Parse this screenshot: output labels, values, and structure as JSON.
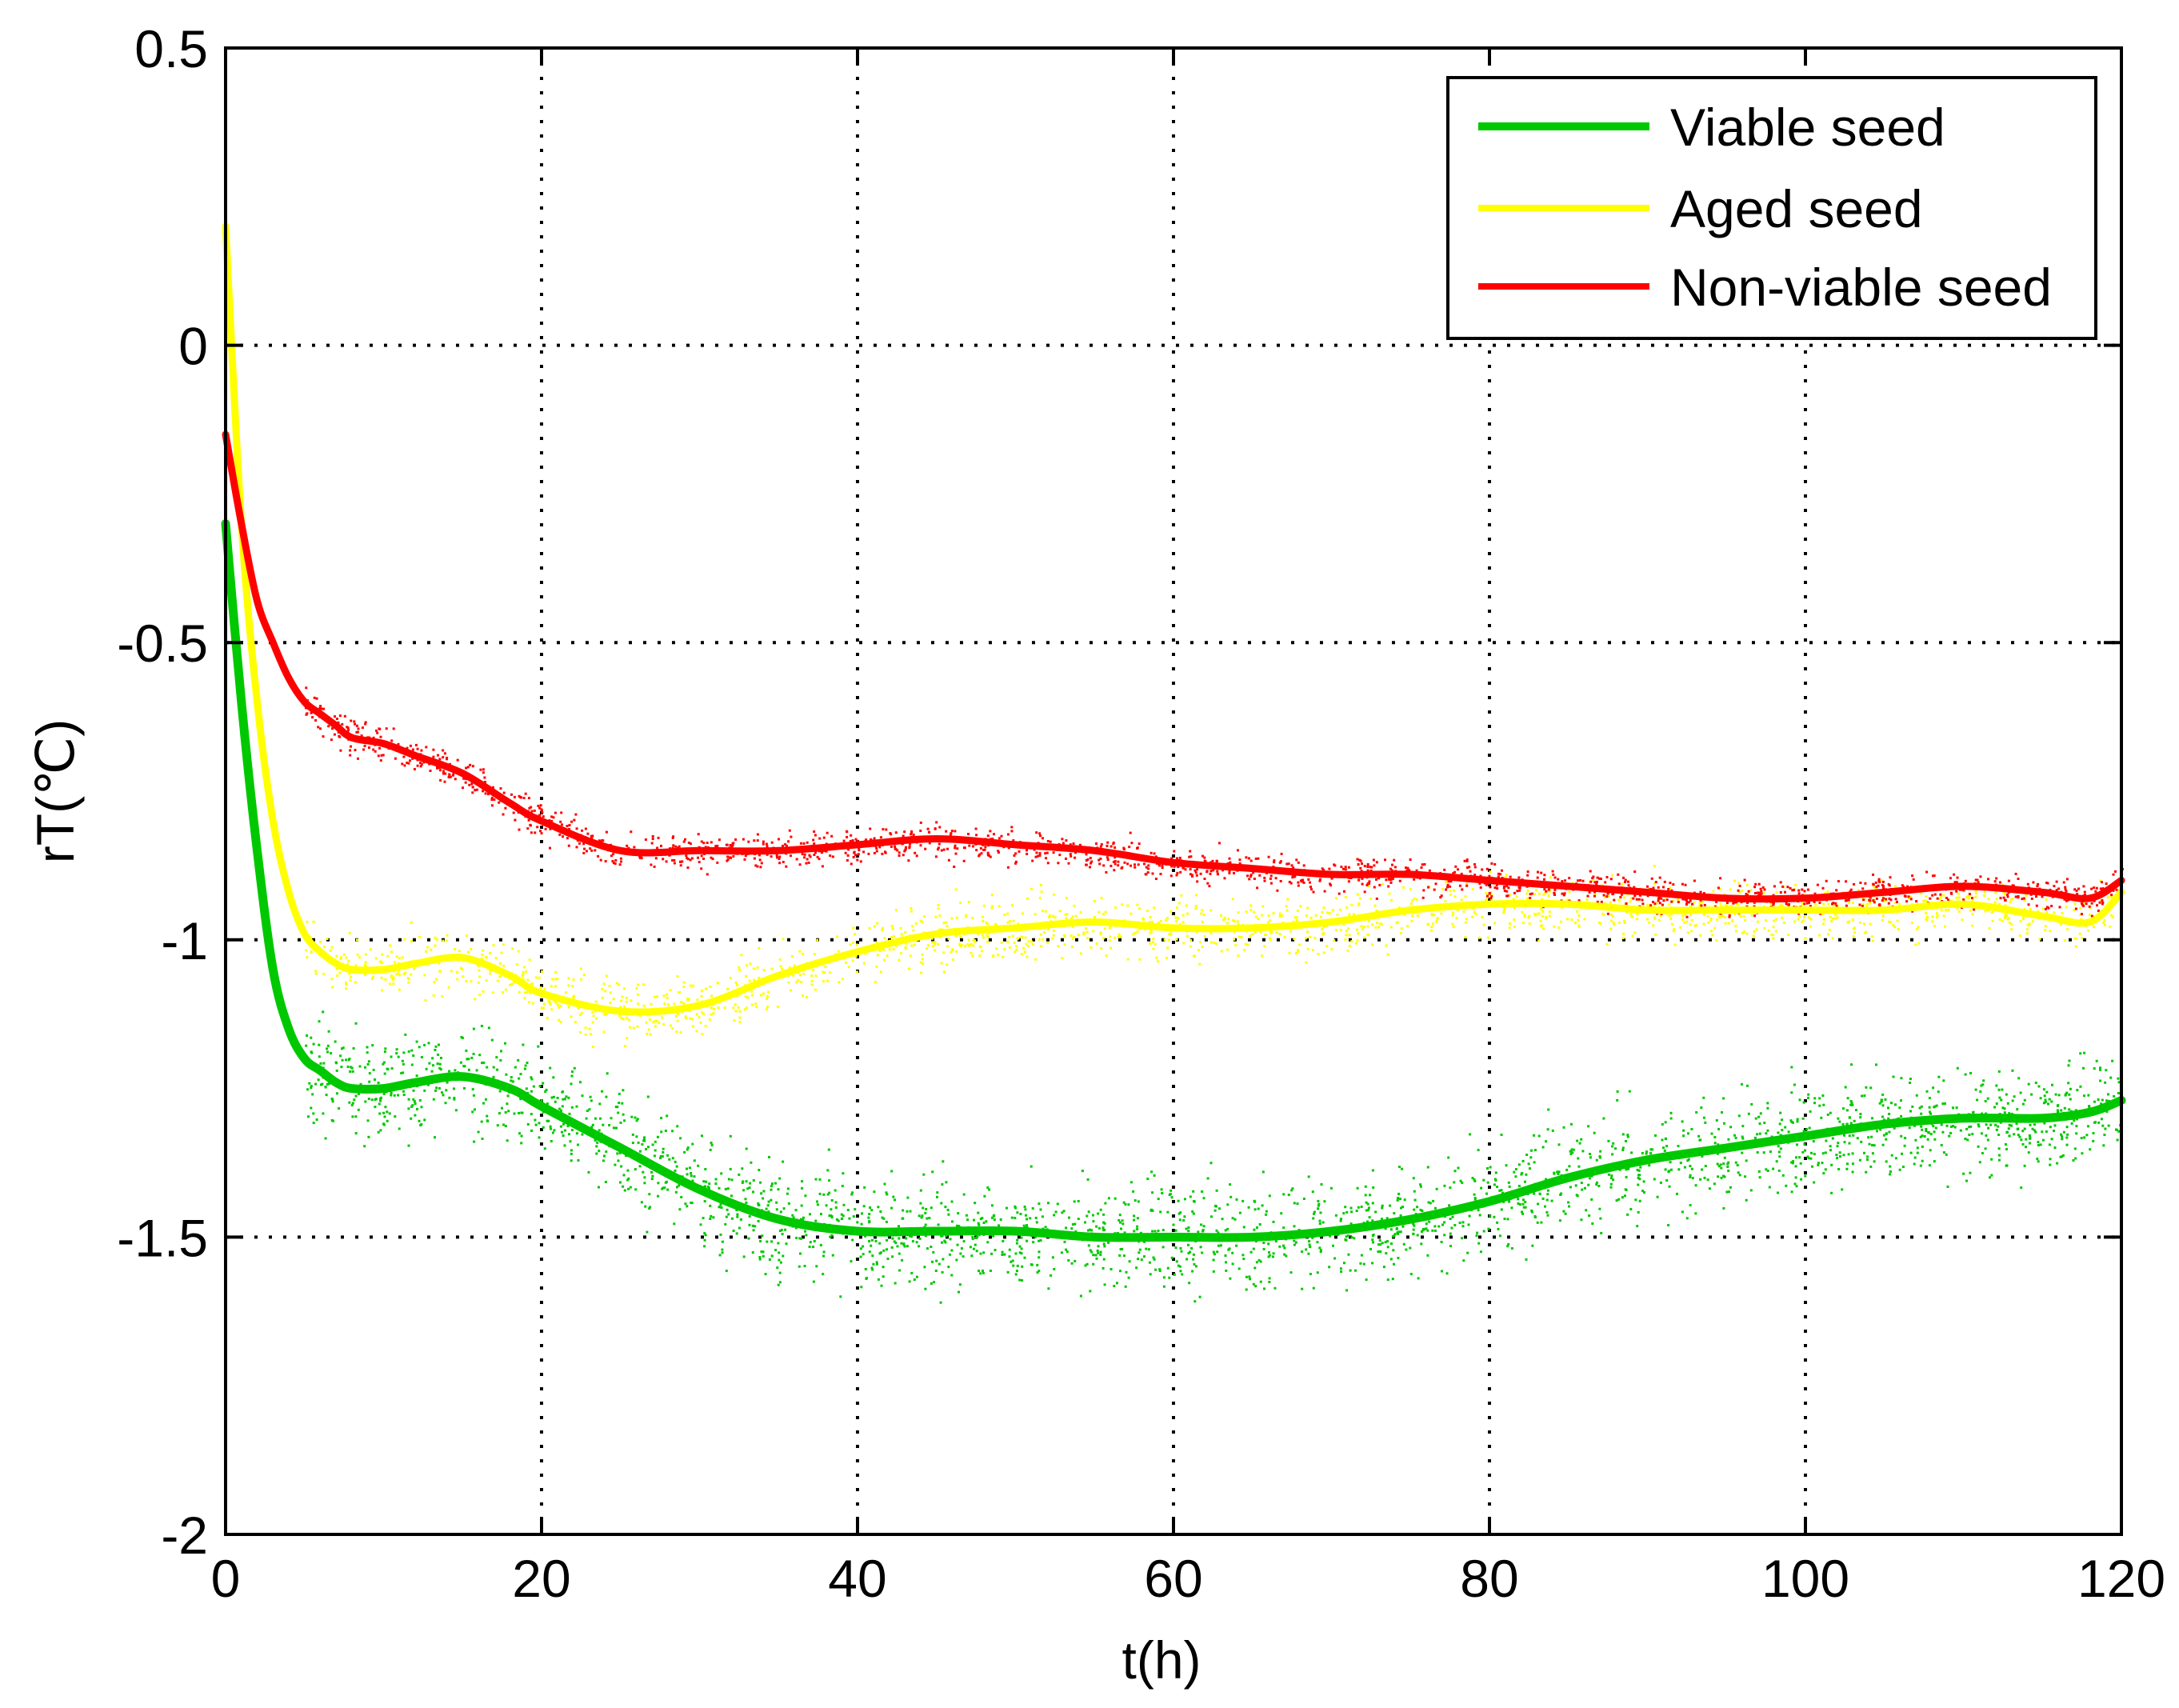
{
  "chart_data": {
    "type": "line",
    "title": "",
    "xlabel": "t(h)",
    "ylabel": "rT(℃)",
    "xlim": [
      0,
      120
    ],
    "ylim": [
      -2,
      0.5
    ],
    "grid": true,
    "legend_position": "top-right",
    "xticks": [
      0,
      20,
      40,
      60,
      80,
      100,
      120
    ],
    "xtick_labels": [
      "0",
      "20",
      "40",
      "60",
      "80",
      "100",
      "120"
    ],
    "yticks": [
      0.5,
      0,
      -0.5,
      -1,
      -1.5,
      -2
    ],
    "ytick_labels": [
      "0.5",
      "0",
      "-0.5",
      "-1",
      "-1.5",
      "-2"
    ],
    "x": [
      0,
      1,
      2,
      3,
      4,
      5,
      6,
      7,
      8,
      10,
      12,
      15,
      18,
      20,
      25,
      30,
      35,
      40,
      45,
      50,
      55,
      60,
      65,
      70,
      75,
      80,
      85,
      90,
      95,
      100,
      105,
      110,
      115,
      118,
      120
    ],
    "series": [
      {
        "name": "Viable seed",
        "color": "#00c800",
        "values": [
          -0.3,
          -0.6,
          -0.85,
          -1.05,
          -1.15,
          -1.2,
          -1.22,
          -1.24,
          -1.25,
          -1.25,
          -1.24,
          -1.23,
          -1.25,
          -1.28,
          -1.35,
          -1.42,
          -1.47,
          -1.49,
          -1.49,
          -1.49,
          -1.5,
          -1.5,
          -1.5,
          -1.49,
          -1.47,
          -1.44,
          -1.4,
          -1.37,
          -1.35,
          -1.33,
          -1.31,
          -1.3,
          -1.3,
          -1.29,
          -1.27
        ],
        "noise": 0.045
      },
      {
        "name": "Aged seed",
        "color": "#ffff00",
        "values": [
          0.2,
          -0.3,
          -0.6,
          -0.8,
          -0.92,
          -0.99,
          -1.02,
          -1.04,
          -1.05,
          -1.05,
          -1.04,
          -1.03,
          -1.06,
          -1.09,
          -1.12,
          -1.11,
          -1.06,
          -1.02,
          -0.99,
          -0.98,
          -0.97,
          -0.98,
          -0.98,
          -0.97,
          -0.95,
          -0.94,
          -0.94,
          -0.95,
          -0.95,
          -0.95,
          -0.95,
          -0.94,
          -0.96,
          -0.97,
          -0.92
        ],
        "noise": 0.025
      },
      {
        "name": "Non-viable seed",
        "color": "#ff0000",
        "values": [
          -0.15,
          -0.3,
          -0.43,
          -0.5,
          -0.56,
          -0.6,
          -0.62,
          -0.64,
          -0.66,
          -0.67,
          -0.69,
          -0.72,
          -0.77,
          -0.8,
          -0.85,
          -0.85,
          -0.85,
          -0.84,
          -0.83,
          -0.84,
          -0.85,
          -0.87,
          -0.88,
          -0.89,
          -0.89,
          -0.9,
          -0.91,
          -0.92,
          -0.93,
          -0.93,
          -0.92,
          -0.91,
          -0.92,
          -0.93,
          -0.9
        ],
        "noise": 0.015
      }
    ]
  }
}
